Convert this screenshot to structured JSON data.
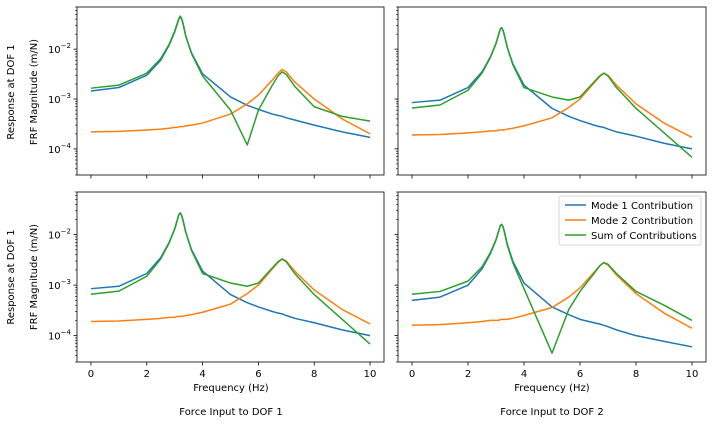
{
  "chart_data": {
    "type": "line",
    "scale": {
      "y": "log"
    },
    "xlim": [
      -0.5,
      10.5
    ],
    "ylim": [
      3e-05,
      0.07
    ],
    "xticks": [
      0,
      2,
      4,
      6,
      8,
      10
    ],
    "yticks": [
      {
        "value": 0.0001,
        "base": "10",
        "exp": "−4"
      },
      {
        "value": 0.001,
        "base": "10",
        "exp": "−3"
      },
      {
        "value": 0.01,
        "base": "10",
        "exp": "−2"
      }
    ],
    "row_labels": [
      [
        "Response at DOF 1",
        "FRF Magnitude (m/N)"
      ],
      [
        "Response at DOF 1",
        "FRF Magnitude (m/N)"
      ]
    ],
    "xlabel": "Frequency (Hz)",
    "column_titles": [
      "Force Input to DOF 1",
      "Force Input to DOF 2"
    ],
    "legend": {
      "position": "upper-right of bottom-right panel",
      "entries": [
        "Mode 1 Contribution",
        "Mode 2 Contribution",
        "Sum of Contributions"
      ]
    },
    "colors": [
      "#1f77b4",
      "#ff7f0e",
      "#2ca02c"
    ],
    "x": [
      0,
      1,
      2,
      2.5,
      2.8,
      3.0,
      3.1,
      3.15,
      3.2,
      3.25,
      3.3,
      3.4,
      3.6,
      4.0,
      5.0,
      5.6,
      6.0,
      6.5,
      6.7,
      6.85,
      7.0,
      7.3,
      8.0,
      9.0,
      10.0
    ],
    "panels": [
      {
        "id": "input1-response1",
        "series": [
          {
            "name": "Mode 1 Contribution",
            "values": [
              0.00145,
              0.0017,
              0.003,
              0.006,
              0.012,
              0.022,
              0.033,
              0.04,
              0.045,
              0.04,
              0.032,
              0.018,
              0.0085,
              0.0032,
              0.0011,
              0.00075,
              0.00062,
              0.0005,
              0.00047,
              0.00045,
              0.00042,
              0.00038,
              0.0003,
              0.00022,
              0.00017
            ]
          },
          {
            "name": "Mode 2 Contribution",
            "values": [
              0.00022,
              0.000225,
              0.00024,
              0.00025,
              0.00026,
              0.00027,
              0.00027,
              0.00028,
              0.00028,
              0.00028,
              0.00028,
              0.00029,
              0.0003,
              0.00033,
              0.0005,
              0.0008,
              0.0012,
              0.0024,
              0.0033,
              0.0039,
              0.0035,
              0.0022,
              0.001,
              0.0004,
              0.0002
            ]
          },
          {
            "name": "Sum of Contributions",
            "values": [
              0.00165,
              0.0019,
              0.0033,
              0.0065,
              0.0125,
              0.023,
              0.034,
              0.041,
              0.046,
              0.041,
              0.033,
              0.018,
              0.0082,
              0.0029,
              0.0006,
              0.00012,
              0.0006,
              0.0019,
              0.0029,
              0.0035,
              0.0031,
              0.0018,
              0.0007,
              0.00045,
              0.00036
            ]
          }
        ]
      },
      {
        "id": "input2-response1",
        "series": [
          {
            "name": "Mode 1 Contribution",
            "values": [
              0.00085,
              0.00095,
              0.0017,
              0.0035,
              0.007,
              0.013,
              0.02,
              0.025,
              0.027,
              0.024,
              0.019,
              0.011,
              0.0051,
              0.0019,
              0.00065,
              0.00045,
              0.00037,
              0.0003,
              0.00028,
              0.00027,
              0.00025,
              0.00022,
              0.00018,
              0.00013,
              0.0001
            ]
          },
          {
            "name": "Mode 2 Contribution",
            "values": [
              0.00019,
              0.000195,
              0.00021,
              0.00022,
              0.00023,
              0.00023,
              0.00024,
              0.00024,
              0.00024,
              0.00024,
              0.00024,
              0.00025,
              0.00026,
              0.00029,
              0.00042,
              0.00068,
              0.001,
              0.0021,
              0.0028,
              0.0033,
              0.003,
              0.0019,
              0.0008,
              0.00033,
              0.00017
            ]
          },
          {
            "name": "Sum of Contributions",
            "values": [
              0.00066,
              0.00076,
              0.0015,
              0.0033,
              0.0068,
              0.013,
              0.02,
              0.025,
              0.027,
              0.024,
              0.019,
              0.011,
              0.0049,
              0.0017,
              0.0011,
              0.00095,
              0.0011,
              0.0022,
              0.0029,
              0.0033,
              0.0029,
              0.0017,
              0.00065,
              0.00021,
              6.8e-05
            ]
          }
        ]
      },
      {
        "id": "input1-response1-b",
        "series": [
          {
            "name": "Mode 1 Contribution",
            "values": [
              0.00085,
              0.00095,
              0.0017,
              0.0035,
              0.007,
              0.013,
              0.02,
              0.025,
              0.027,
              0.024,
              0.019,
              0.011,
              0.0051,
              0.0019,
              0.00065,
              0.00045,
              0.00037,
              0.0003,
              0.00028,
              0.00027,
              0.00025,
              0.00022,
              0.00018,
              0.00013,
              0.0001
            ]
          },
          {
            "name": "Mode 2 Contribution",
            "values": [
              0.00019,
              0.000195,
              0.00021,
              0.00022,
              0.00023,
              0.00023,
              0.00024,
              0.00024,
              0.00024,
              0.00024,
              0.00024,
              0.00025,
              0.00026,
              0.00029,
              0.00042,
              0.00068,
              0.001,
              0.0021,
              0.0028,
              0.0033,
              0.003,
              0.0019,
              0.0008,
              0.00033,
              0.00017
            ]
          },
          {
            "name": "Sum of Contributions",
            "values": [
              0.00066,
              0.00076,
              0.0015,
              0.0033,
              0.0068,
              0.013,
              0.02,
              0.025,
              0.027,
              0.024,
              0.019,
              0.011,
              0.0049,
              0.0017,
              0.0011,
              0.00095,
              0.0011,
              0.0022,
              0.0029,
              0.0033,
              0.0029,
              0.0017,
              0.00065,
              0.00021,
              6.8e-05
            ]
          }
        ]
      },
      {
        "id": "input2-response1-b",
        "series": [
          {
            "name": "Mode 1 Contribution",
            "values": [
              0.0005,
              0.00058,
              0.001,
              0.0021,
              0.0042,
              0.0078,
              0.012,
              0.015,
              0.016,
              0.0145,
              0.0115,
              0.0066,
              0.003,
              0.0011,
              0.00037,
              0.00026,
              0.00021,
              0.00018,
              0.00017,
              0.00016,
              0.00015,
              0.00013,
              0.0001,
              7.7e-05,
              6e-05
            ]
          },
          {
            "name": "Mode 2 Contribution",
            "values": [
              0.00016,
              0.000165,
              0.00018,
              0.00019,
              0.0002,
              0.0002,
              0.0002,
              0.00021,
              0.00021,
              0.00021,
              0.00021,
              0.00021,
              0.00022,
              0.00025,
              0.00036,
              0.00058,
              0.00088,
              0.0018,
              0.0024,
              0.0028,
              0.0025,
              0.0016,
              0.00068,
              0.00028,
              0.00014
            ]
          },
          {
            "name": "Sum of Contributions",
            "values": [
              0.00066,
              0.00075,
              0.0012,
              0.0023,
              0.0044,
              0.008,
              0.012,
              0.015,
              0.016,
              0.0143,
              0.0113,
              0.0063,
              0.0028,
              0.00085,
              4.5e-05,
              0.00033,
              0.00075,
              0.0017,
              0.0024,
              0.0028,
              0.0026,
              0.0017,
              0.00075,
              0.0004,
              0.0002
            ]
          }
        ]
      }
    ]
  }
}
